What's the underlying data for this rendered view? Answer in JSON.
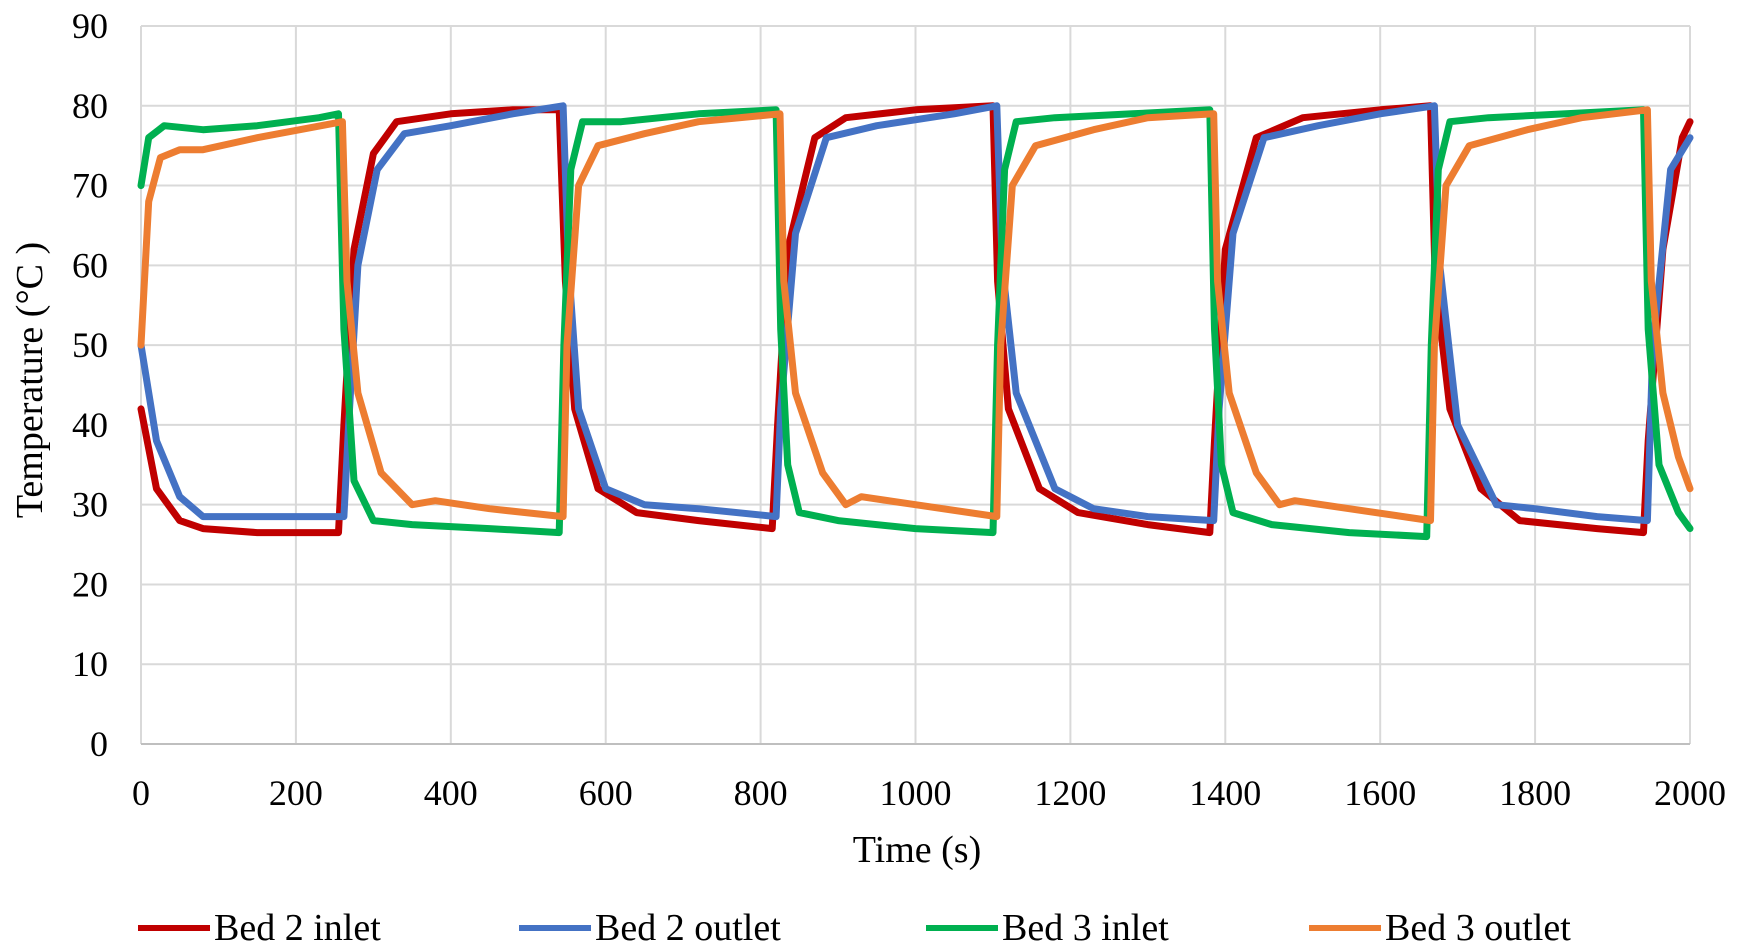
{
  "chart_data": {
    "type": "line",
    "title": "",
    "xlabel": "Time (s)",
    "ylabel": "Temperature  (°C )",
    "xlim": [
      0,
      2000
    ],
    "ylim": [
      0,
      90
    ],
    "xticks": [
      0,
      200,
      400,
      600,
      800,
      1000,
      1200,
      1400,
      1600,
      1800,
      2000
    ],
    "yticks": [
      0,
      10,
      20,
      30,
      40,
      50,
      60,
      70,
      80,
      90
    ],
    "grid": true,
    "legend_position": "bottom",
    "series": [
      {
        "name": "Bed 2 inlet",
        "color": "#c00000",
        "x": [
          0,
          20,
          50,
          80,
          150,
          255,
          262,
          275,
          300,
          330,
          400,
          480,
          540,
          548,
          560,
          590,
          640,
          720,
          815,
          822,
          835,
          870,
          910,
          1000,
          1100,
          1106,
          1120,
          1160,
          1210,
          1300,
          1380,
          1386,
          1400,
          1440,
          1500,
          1600,
          1665,
          1671,
          1690,
          1730,
          1780,
          1880,
          1940,
          1946,
          1965,
          1990,
          2000
        ],
        "y": [
          42,
          32,
          28,
          27,
          26.5,
          26.5,
          40,
          62,
          74,
          78,
          79,
          79.5,
          79.5,
          58,
          42,
          32,
          29,
          28,
          27,
          40,
          62,
          76,
          78.5,
          79.5,
          80,
          58,
          42,
          32,
          29,
          27.5,
          26.5,
          38,
          62,
          76,
          78.5,
          79.5,
          80,
          58,
          42,
          32,
          28,
          27,
          26.5,
          38,
          62,
          76,
          78
        ]
      },
      {
        "name": "Bed 2 outlet",
        "color": "#4472c4",
        "x": [
          0,
          20,
          50,
          80,
          150,
          262,
          268,
          280,
          305,
          340,
          400,
          480,
          545,
          552,
          565,
          600,
          650,
          720,
          820,
          826,
          845,
          885,
          950,
          1050,
          1105,
          1112,
          1130,
          1180,
          1230,
          1300,
          1385,
          1392,
          1410,
          1450,
          1520,
          1600,
          1670,
          1677,
          1700,
          1750,
          1800,
          1880,
          1945,
          1952,
          1975,
          2000
        ],
        "y": [
          50,
          38,
          31,
          28.5,
          28.5,
          28.5,
          40,
          60,
          72,
          76.5,
          77.5,
          79,
          80,
          60,
          42,
          32,
          30,
          29.5,
          28.5,
          42,
          64,
          76,
          77.5,
          79,
          80,
          60,
          44,
          32,
          29.5,
          28.5,
          28,
          42,
          64,
          76,
          77.5,
          79,
          80,
          60,
          40,
          30,
          29.5,
          28.5,
          28,
          50,
          72,
          76
        ]
      },
      {
        "name": "Bed 3 inlet",
        "color": "#00b050",
        "x": [
          0,
          10,
          30,
          80,
          150,
          230,
          255,
          262,
          275,
          300,
          350,
          450,
          540,
          546,
          555,
          570,
          620,
          720,
          820,
          826,
          835,
          850,
          900,
          1000,
          1100,
          1106,
          1115,
          1130,
          1180,
          1280,
          1380,
          1386,
          1395,
          1410,
          1460,
          1560,
          1660,
          1666,
          1675,
          1690,
          1740,
          1840,
          1940,
          1946,
          1960,
          1985,
          2000
        ],
        "y": [
          70,
          76,
          77.5,
          77,
          77.5,
          78.5,
          79,
          52,
          33,
          28,
          27.5,
          27,
          26.5,
          50,
          72,
          78,
          78,
          79,
          79.5,
          52,
          35,
          29,
          28,
          27,
          26.5,
          50,
          72,
          78,
          78.5,
          79,
          79.5,
          52,
          35,
          29,
          27.5,
          26.5,
          26,
          50,
          72,
          78,
          78.5,
          79,
          79.5,
          52,
          35,
          29,
          27
        ]
      },
      {
        "name": "Bed 3 outlet",
        "color": "#ed7d31",
        "x": [
          0,
          10,
          25,
          50,
          80,
          150,
          260,
          266,
          280,
          310,
          350,
          380,
          450,
          545,
          550,
          565,
          590,
          650,
          720,
          825,
          830,
          845,
          880,
          910,
          930,
          1000,
          1105,
          1110,
          1125,
          1155,
          1230,
          1300,
          1385,
          1390,
          1405,
          1440,
          1470,
          1490,
          1560,
          1665,
          1670,
          1685,
          1715,
          1790,
          1860,
          1945,
          1950,
          1965,
          1985,
          2000
        ],
        "y": [
          50,
          68,
          73.5,
          74.5,
          74.5,
          76,
          78,
          58,
          44,
          34,
          30,
          30.5,
          29.5,
          28.5,
          50,
          70,
          75,
          76.5,
          78,
          79,
          58,
          44,
          34,
          30,
          31,
          30,
          28.5,
          50,
          70,
          75,
          77,
          78.5,
          79,
          58,
          44,
          34,
          30,
          30.5,
          29.5,
          28,
          50,
          70,
          75,
          77,
          78.5,
          79.5,
          58,
          44,
          36,
          32
        ]
      }
    ]
  }
}
